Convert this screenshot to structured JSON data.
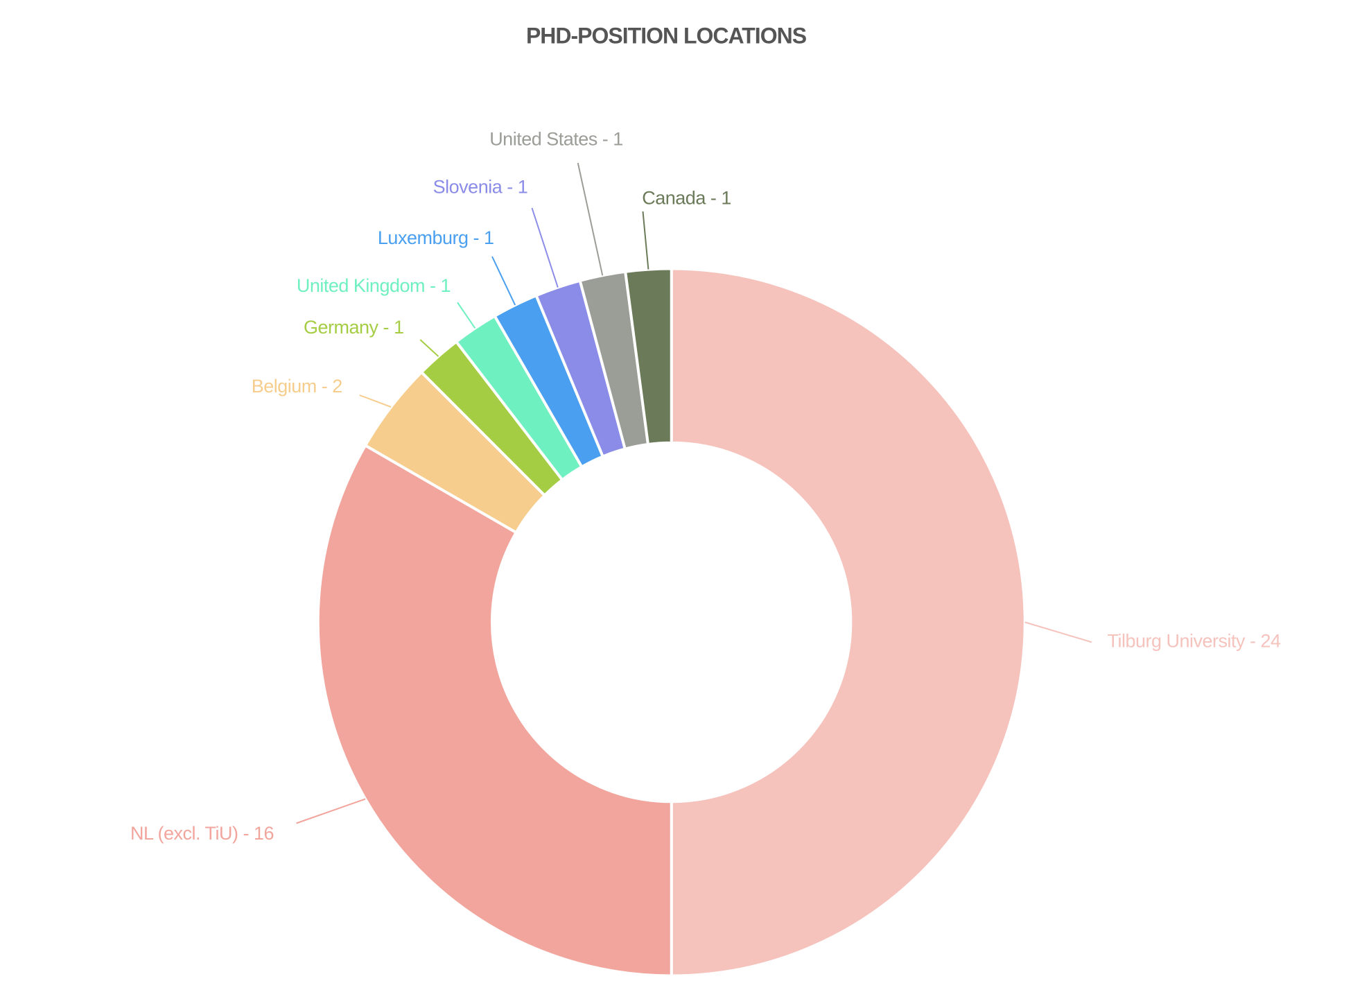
{
  "chart_data": {
    "type": "donut",
    "title": "PHD-POSITION LOCATIONS",
    "values": [
      24,
      16,
      2,
      1,
      1,
      1,
      1,
      1,
      1
    ],
    "value_labels": [
      "Tilburg University - 24",
      "NL (excl. TiU) - 16",
      "Belgium - 2",
      "Germany - 1",
      "United Kingdom - 1",
      "Luxemburg - 1",
      "Slovenia - 1",
      "United States - 1",
      "Canada - 1"
    ],
    "colors": [
      "#f5c2bc",
      "#f2a59c",
      "#f6cd8c",
      "#a5cd43",
      "#6ff0c0",
      "#4a9ff0",
      "#8b8ce8",
      "#9b9d97",
      "#6b7a59"
    ]
  }
}
